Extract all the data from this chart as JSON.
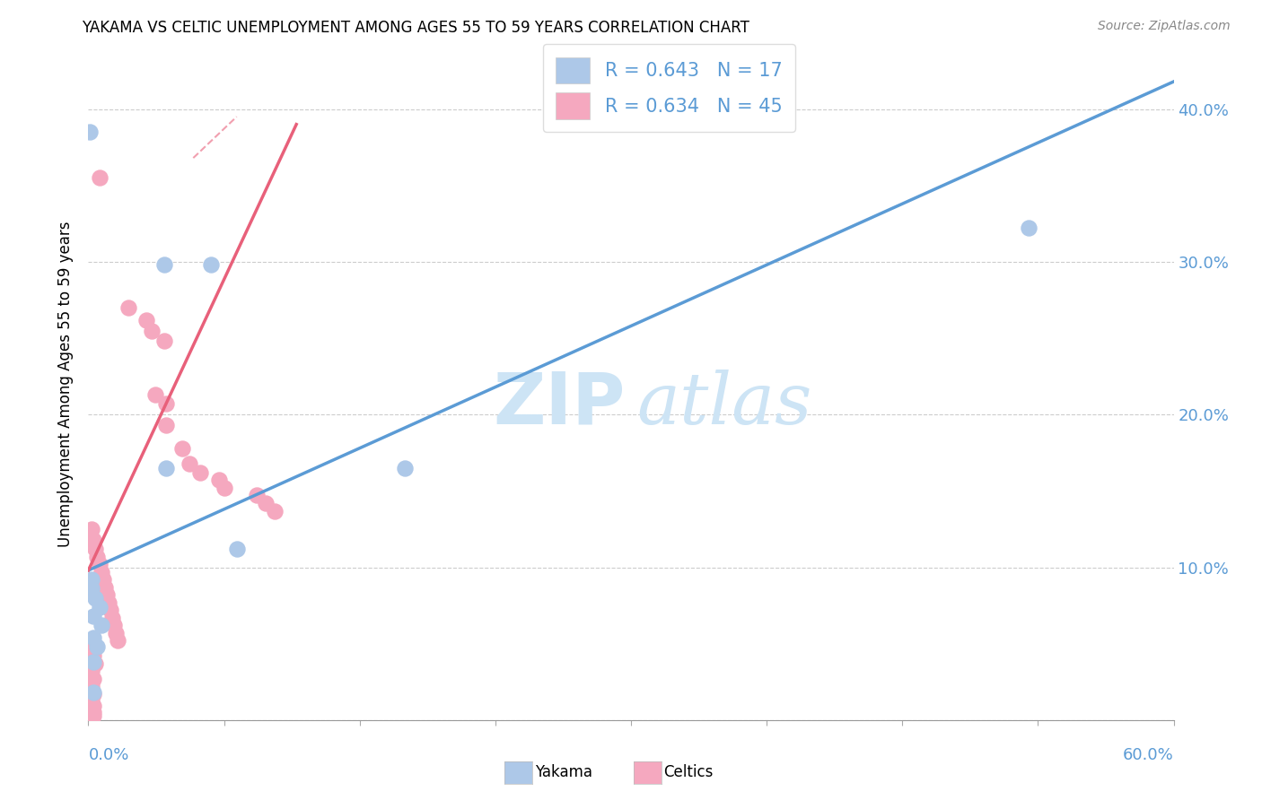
{
  "title": "YAKAMA VS CELTIC UNEMPLOYMENT AMONG AGES 55 TO 59 YEARS CORRELATION CHART",
  "source": "Source: ZipAtlas.com",
  "ylabel": "Unemployment Among Ages 55 to 59 years",
  "legend_label1": "Yakama",
  "legend_label2": "Celtics",
  "R1": 0.643,
  "N1": 17,
  "R2": 0.634,
  "N2": 45,
  "xlim": [
    0.0,
    0.6
  ],
  "ylim": [
    0.0,
    0.44
  ],
  "yticks": [
    0.0,
    0.1,
    0.2,
    0.3,
    0.4
  ],
  "ytick_labels": [
    "",
    "10.0%",
    "20.0%",
    "30.0%",
    "40.0%"
  ],
  "color_yakama": "#adc8e8",
  "color_celtics": "#f5a8bf",
  "color_line_yakama": "#5b9bd5",
  "color_line_celtics": "#e8607a",
  "color_watermark": "#cde4f5",
  "yakama_points": [
    [
      0.001,
      0.385
    ],
    [
      0.042,
      0.298
    ],
    [
      0.068,
      0.298
    ],
    [
      0.082,
      0.112
    ],
    [
      0.175,
      0.165
    ],
    [
      0.043,
      0.165
    ],
    [
      0.002,
      0.092
    ],
    [
      0.002,
      0.086
    ],
    [
      0.004,
      0.08
    ],
    [
      0.006,
      0.074
    ],
    [
      0.003,
      0.068
    ],
    [
      0.007,
      0.062
    ],
    [
      0.003,
      0.054
    ],
    [
      0.005,
      0.048
    ],
    [
      0.003,
      0.038
    ],
    [
      0.52,
      0.322
    ],
    [
      0.003,
      0.018
    ]
  ],
  "celtics_points": [
    [
      0.006,
      0.355
    ],
    [
      0.022,
      0.27
    ],
    [
      0.032,
      0.262
    ],
    [
      0.035,
      0.255
    ],
    [
      0.042,
      0.248
    ],
    [
      0.037,
      0.213
    ],
    [
      0.043,
      0.207
    ],
    [
      0.043,
      0.193
    ],
    [
      0.052,
      0.178
    ],
    [
      0.056,
      0.168
    ],
    [
      0.062,
      0.162
    ],
    [
      0.072,
      0.157
    ],
    [
      0.075,
      0.152
    ],
    [
      0.093,
      0.147
    ],
    [
      0.098,
      0.142
    ],
    [
      0.103,
      0.137
    ],
    [
      0.002,
      0.125
    ],
    [
      0.003,
      0.118
    ],
    [
      0.004,
      0.112
    ],
    [
      0.005,
      0.107
    ],
    [
      0.006,
      0.102
    ],
    [
      0.007,
      0.097
    ],
    [
      0.008,
      0.092
    ],
    [
      0.009,
      0.087
    ],
    [
      0.01,
      0.082
    ],
    [
      0.011,
      0.077
    ],
    [
      0.012,
      0.072
    ],
    [
      0.013,
      0.067
    ],
    [
      0.014,
      0.062
    ],
    [
      0.015,
      0.057
    ],
    [
      0.016,
      0.052
    ],
    [
      0.002,
      0.047
    ],
    [
      0.003,
      0.042
    ],
    [
      0.004,
      0.037
    ],
    [
      0.002,
      0.032
    ],
    [
      0.003,
      0.027
    ],
    [
      0.002,
      0.022
    ],
    [
      0.003,
      0.017
    ],
    [
      0.002,
      0.012
    ],
    [
      0.003,
      0.009
    ],
    [
      0.002,
      0.007
    ],
    [
      0.003,
      0.005
    ],
    [
      0.002,
      0.004
    ],
    [
      0.003,
      0.003
    ],
    [
      0.002,
      0.002
    ]
  ],
  "yakama_line_x": [
    0.0,
    0.6
  ],
  "yakama_line_y": [
    0.098,
    0.418
  ],
  "celtics_line_x": [
    0.0,
    0.115
  ],
  "celtics_line_y": [
    0.098,
    0.39
  ],
  "dashed_line_x": [
    0.058,
    0.082
  ],
  "dashed_line_y": [
    0.368,
    0.395
  ]
}
